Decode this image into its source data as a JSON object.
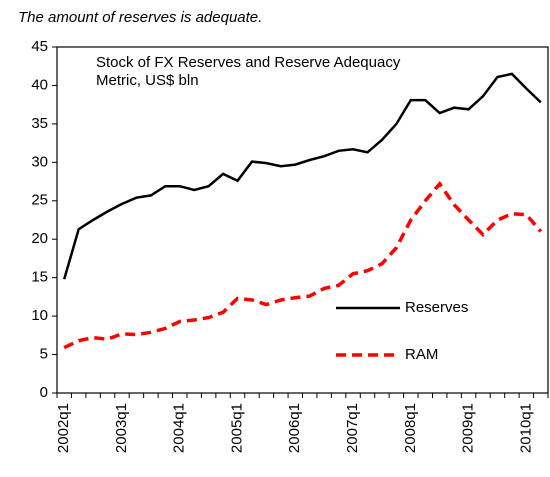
{
  "note": "The amount of reserves  is adequate.",
  "chart_data": {
    "type": "line",
    "title_lines": [
      "Stock of FX Reserves and Reserve Adequacy",
      "Metric, US$ bln"
    ],
    "categories": [
      "2002q1",
      null,
      null,
      null,
      "2003q1",
      null,
      null,
      null,
      "2004q1",
      null,
      null,
      null,
      "2005q1",
      null,
      null,
      null,
      "2006q1",
      null,
      null,
      null,
      "2007q1",
      null,
      null,
      null,
      "2008q1",
      null,
      null,
      null,
      "2009q1",
      null,
      null,
      null,
      "2010q1",
      null
    ],
    "series": [
      {
        "name": "Reserves",
        "color": "#000000",
        "dash": false,
        "values": [
          14.8,
          21.3,
          22.5,
          23.6,
          24.6,
          25.4,
          25.7,
          26.9,
          26.9,
          26.4,
          26.9,
          28.5,
          27.6,
          30.1,
          29.9,
          29.5,
          29.7,
          30.3,
          30.8,
          31.5,
          31.7,
          31.3,
          32.9,
          35,
          38.1,
          38.1,
          36.4,
          37.1,
          36.9,
          38.6,
          41.1,
          41.5,
          39.6,
          37.8
        ]
      },
      {
        "name": "RAM",
        "color": "#ff0000",
        "dash": true,
        "values": [
          5.9,
          6.8,
          7.2,
          7.0,
          7.7,
          7.6,
          7.9,
          8.4,
          9.3,
          9.5,
          9.8,
          10.5,
          12.3,
          12.1,
          11.5,
          12.1,
          12.4,
          12.6,
          13.6,
          14.0,
          15.5,
          15.9,
          16.8,
          18.9,
          22.5,
          25,
          27.2,
          24.5,
          22.5,
          20.6,
          22.5,
          23.3,
          23.2,
          21.0
        ]
      }
    ],
    "ylim": [
      0,
      45
    ],
    "yticks": [
      0,
      5,
      10,
      15,
      20,
      25,
      30,
      35,
      40,
      45
    ],
    "grid": false
  }
}
